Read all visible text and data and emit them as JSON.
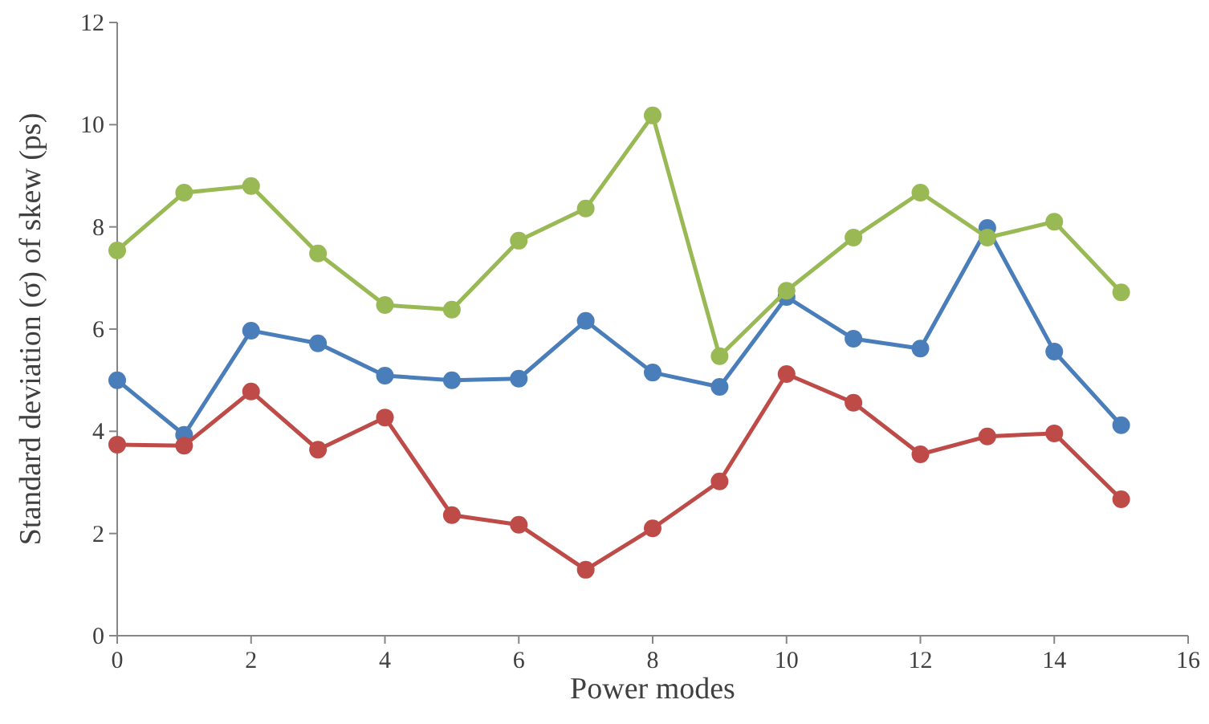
{
  "chart_data": {
    "type": "line",
    "xlabel": "Power modes",
    "ylabel": "Standard deviation (σ) of skew (ps)",
    "x": [
      0,
      1,
      2,
      3,
      4,
      5,
      6,
      7,
      8,
      9,
      10,
      11,
      12,
      13,
      14,
      15
    ],
    "xlim": [
      0,
      16
    ],
    "xticks": [
      0,
      2,
      4,
      6,
      8,
      10,
      12,
      14,
      16
    ],
    "ylim": [
      0,
      12
    ],
    "yticks": [
      0,
      2,
      4,
      6,
      8,
      10,
      12
    ],
    "grid": false,
    "marker": "circle",
    "line_style": "solid",
    "series": [
      {
        "color": "#4a7ebb",
        "values": [
          5.0,
          3.93,
          5.97,
          5.72,
          5.09,
          5.0,
          5.03,
          6.16,
          5.15,
          4.87,
          6.63,
          5.81,
          5.62,
          7.98,
          5.56,
          4.12
        ]
      },
      {
        "color": "#be4b48",
        "values": [
          3.74,
          3.72,
          4.78,
          3.64,
          4.27,
          2.36,
          2.17,
          1.29,
          2.1,
          3.02,
          5.12,
          4.56,
          3.55,
          3.9,
          3.96,
          2.67
        ]
      },
      {
        "color": "#98b954",
        "values": [
          7.54,
          8.67,
          8.8,
          7.48,
          6.47,
          6.38,
          7.73,
          8.36,
          10.18,
          5.47,
          6.75,
          7.79,
          8.67,
          7.79,
          8.1,
          6.72
        ]
      }
    ]
  }
}
